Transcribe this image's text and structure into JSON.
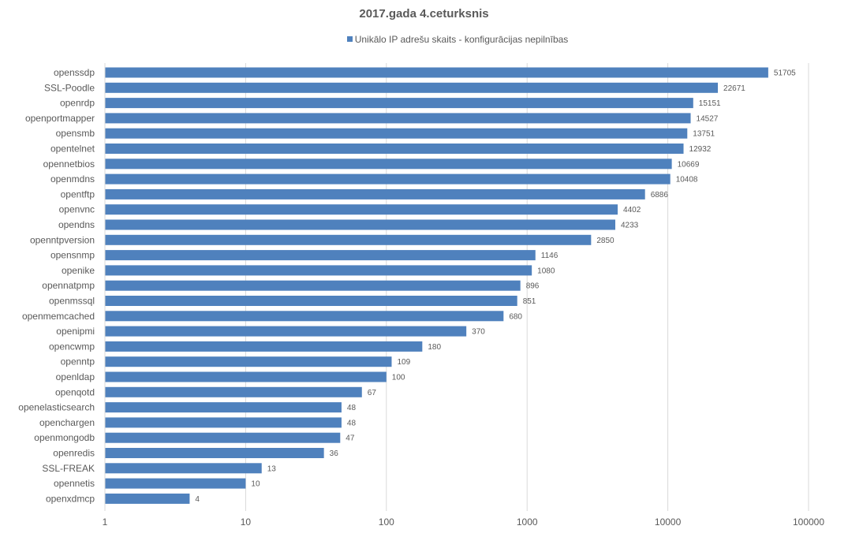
{
  "chart_data": {
    "type": "bar",
    "orientation": "horizontal",
    "title": "2017.gada 4.ceturksnis",
    "x_scale": "log",
    "xlim": [
      1,
      100000
    ],
    "x_ticks": [
      "1",
      "10",
      "100",
      "1000",
      "10000",
      "100000"
    ],
    "x_tick_values": [
      1,
      10,
      100,
      1000,
      10000,
      100000
    ],
    "grid": "vertical",
    "legend_position": "top",
    "series": [
      {
        "name": "Unikālo IP adrešu skaits  -  konfigurācijas nepilnības",
        "color": "#4f81bd",
        "values": [
          51705,
          22671,
          15151,
          14527,
          13751,
          12932,
          10669,
          10408,
          6886,
          4402,
          4233,
          2850,
          1146,
          1080,
          896,
          851,
          680,
          370,
          180,
          109,
          100,
          67,
          48,
          48,
          47,
          36,
          13,
          10,
          4
        ]
      }
    ],
    "categories": [
      "openssdp",
      "SSL-Poodle",
      "openrdp",
      "openportmapper",
      "opensmb",
      "opentelnet",
      "opennetbios",
      "openmdns",
      "opentftp",
      "openvnc",
      "opendns",
      "openntpversion",
      "opensnmp",
      "openike",
      "opennatpmp",
      "openmssql",
      "openmemcached",
      "openipmi",
      "opencwmp",
      "openntp",
      "openldap",
      "openqotd",
      "openelasticsearch",
      "openchargen",
      "openmongodb",
      "openredis",
      "SSL-FREAK",
      "opennetis",
      "openxdmcp"
    ],
    "data_labels": [
      "51705",
      "22671",
      "15151",
      "14527",
      "13751",
      "12932",
      "10669",
      "10408",
      "6886",
      "4402",
      "4233",
      "2850",
      "1146",
      "1080",
      "896",
      "851",
      "680",
      "370",
      "180",
      "109",
      "100",
      "67",
      "48",
      "48",
      "47",
      "36",
      "13",
      "10",
      "4"
    ]
  }
}
